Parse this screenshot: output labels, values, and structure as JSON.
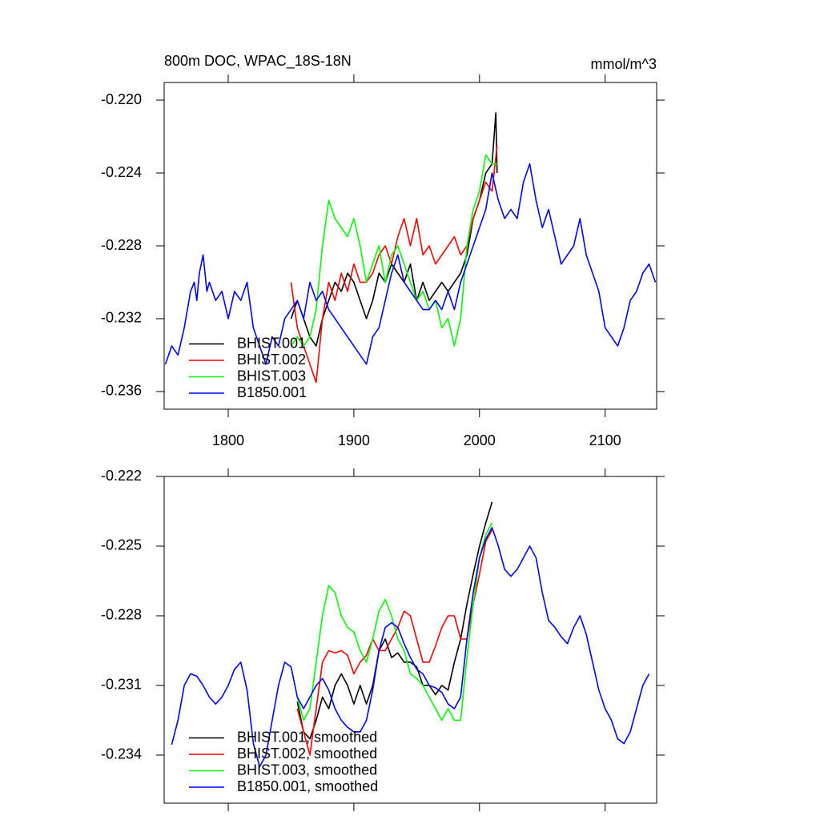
{
  "chart_data": [
    {
      "type": "line",
      "title": "800m DOC, WPAC_18S-18N",
      "units": "mmol/m^3",
      "xlim": [
        1749,
        2141
      ],
      "ylim": [
        -0.23697,
        -0.21903
      ],
      "xticks": [
        1800,
        1900,
        2000,
        2100
      ],
      "yticks": [
        {
          "value": -0.22,
          "label": "-0.220"
        },
        -0.224,
        -0.228,
        -0.232,
        -0.236
      ],
      "legend": "lower left",
      "show_xtick_labels": true,
      "series": [
        {
          "name": "BHIST.001",
          "color": "#000000",
          "x": [
            1850,
            1855,
            1860,
            1865,
            1870,
            1875,
            1880,
            1885,
            1890,
            1895,
            1900,
            1905,
            1910,
            1915,
            1920,
            1925,
            1930,
            1935,
            1940,
            1945,
            1950,
            1955,
            1960,
            1965,
            1970,
            1975,
            1980,
            1985,
            1990,
            1995,
            2000,
            2005,
            2010,
            2013,
            2014
          ],
          "values": [
            -0.232,
            -0.231,
            -0.232,
            -0.233,
            -0.2335,
            -0.232,
            -0.231,
            -0.23,
            -0.2305,
            -0.2295,
            -0.23,
            -0.231,
            -0.232,
            -0.231,
            -0.2295,
            -0.23,
            -0.229,
            -0.2295,
            -0.23,
            -0.229,
            -0.231,
            -0.23,
            -0.231,
            -0.2305,
            -0.23,
            -0.2305,
            -0.23,
            -0.2295,
            -0.2285,
            -0.2265,
            -0.2255,
            -0.224,
            -0.2235,
            -0.2207,
            -0.224
          ]
        },
        {
          "name": "BHIST.002",
          "color": "#ff0000",
          "x": [
            1850,
            1855,
            1860,
            1865,
            1870,
            1875,
            1880,
            1885,
            1890,
            1895,
            1900,
            1905,
            1910,
            1915,
            1920,
            1925,
            1930,
            1935,
            1940,
            1945,
            1950,
            1955,
            1960,
            1965,
            1970,
            1975,
            1980,
            1985,
            1990,
            1995,
            2000,
            2005,
            2010,
            2014
          ],
          "values": [
            -0.23,
            -0.2325,
            -0.2335,
            -0.2345,
            -0.2355,
            -0.232,
            -0.23,
            -0.231,
            -0.2295,
            -0.2305,
            -0.229,
            -0.23,
            -0.23,
            -0.2295,
            -0.2285,
            -0.228,
            -0.229,
            -0.2275,
            -0.2265,
            -0.228,
            -0.2265,
            -0.2285,
            -0.228,
            -0.229,
            -0.2285,
            -0.228,
            -0.2275,
            -0.2285,
            -0.228,
            -0.2265,
            -0.2255,
            -0.2245,
            -0.225,
            -0.2225
          ]
        },
        {
          "name": "BHIST.003",
          "color": "#00ff00",
          "x": [
            1850,
            1855,
            1860,
            1865,
            1870,
            1875,
            1880,
            1885,
            1890,
            1895,
            1900,
            1905,
            1910,
            1915,
            1920,
            1925,
            1930,
            1935,
            1940,
            1945,
            1950,
            1955,
            1960,
            1965,
            1970,
            1975,
            1980,
            1985,
            1990,
            1995,
            2000,
            2005,
            2010,
            2014
          ],
          "values": [
            -0.2335,
            -0.233,
            -0.2335,
            -0.233,
            -0.2315,
            -0.228,
            -0.2255,
            -0.2265,
            -0.227,
            -0.2275,
            -0.2265,
            -0.228,
            -0.23,
            -0.229,
            -0.228,
            -0.23,
            -0.2285,
            -0.228,
            -0.229,
            -0.23,
            -0.231,
            -0.2305,
            -0.2315,
            -0.231,
            -0.2325,
            -0.232,
            -0.2335,
            -0.232,
            -0.228,
            -0.226,
            -0.225,
            -0.223,
            -0.2235,
            -0.2235
          ]
        },
        {
          "name": "B1850.001",
          "color": "#0000ff",
          "x": [
            1750,
            1755,
            1760,
            1765,
            1770,
            1773,
            1775,
            1777,
            1780,
            1783,
            1785,
            1790,
            1795,
            1800,
            1805,
            1810,
            1815,
            1820,
            1825,
            1830,
            1835,
            1840,
            1845,
            1850,
            1855,
            1860,
            1865,
            1870,
            1875,
            1880,
            1885,
            1890,
            1895,
            1900,
            1905,
            1910,
            1915,
            1920,
            1925,
            1930,
            1935,
            1940,
            1945,
            1950,
            1955,
            1960,
            1965,
            1970,
            1975,
            1980,
            1985,
            1990,
            1995,
            2000,
            2005,
            2010,
            2015,
            2020,
            2025,
            2030,
            2035,
            2040,
            2045,
            2050,
            2055,
            2060,
            2065,
            2070,
            2075,
            2080,
            2085,
            2090,
            2095,
            2100,
            2105,
            2110,
            2115,
            2120,
            2125,
            2130,
            2135,
            2140
          ],
          "values": [
            -0.2345,
            -0.2335,
            -0.234,
            -0.2325,
            -0.2305,
            -0.23,
            -0.231,
            -0.2295,
            -0.2285,
            -0.2305,
            -0.23,
            -0.231,
            -0.2305,
            -0.232,
            -0.2305,
            -0.231,
            -0.23,
            -0.2325,
            -0.2335,
            -0.2345,
            -0.233,
            -0.2335,
            -0.232,
            -0.2315,
            -0.231,
            -0.232,
            -0.23,
            -0.231,
            -0.2305,
            -0.2315,
            -0.232,
            -0.2325,
            -0.233,
            -0.2335,
            -0.234,
            -0.2345,
            -0.233,
            -0.2325,
            -0.231,
            -0.2295,
            -0.2285,
            -0.23,
            -0.2305,
            -0.231,
            -0.2315,
            -0.2315,
            -0.231,
            -0.2315,
            -0.2305,
            -0.2315,
            -0.23,
            -0.229,
            -0.228,
            -0.227,
            -0.226,
            -0.224,
            -0.2255,
            -0.2265,
            -0.226,
            -0.2265,
            -0.2245,
            -0.2235,
            -0.2255,
            -0.227,
            -0.226,
            -0.2275,
            -0.229,
            -0.2285,
            -0.228,
            -0.2265,
            -0.2285,
            -0.2295,
            -0.2305,
            -0.2325,
            -0.233,
            -0.2335,
            -0.2325,
            -0.231,
            -0.2305,
            -0.2295,
            -0.229,
            -0.23
          ]
        }
      ]
    },
    {
      "type": "line",
      "xlim": [
        1749,
        2141
      ],
      "ylim": [
        -0.23607,
        -0.222
      ],
      "xticks": [
        1800,
        1900,
        2000,
        2100
      ],
      "yticks": [
        -0.222,
        -0.225,
        -0.228,
        -0.231,
        -0.234
      ],
      "legend": "lower left",
      "show_xtick_labels": false,
      "series": [
        {
          "name": "BHIST.001, smoothed",
          "color": "#000000",
          "x": [
            1855,
            1860,
            1865,
            1870,
            1875,
            1880,
            1885,
            1890,
            1895,
            1900,
            1905,
            1910,
            1915,
            1920,
            1925,
            1930,
            1935,
            1940,
            1945,
            1950,
            1955,
            1960,
            1965,
            1970,
            1975,
            1980,
            1985,
            1990,
            1995,
            2000,
            2005,
            2010
          ],
          "values": [
            -0.2317,
            -0.233,
            -0.2333,
            -0.2325,
            -0.2315,
            -0.232,
            -0.231,
            -0.2305,
            -0.231,
            -0.2318,
            -0.231,
            -0.2318,
            -0.231,
            -0.2295,
            -0.229,
            -0.2298,
            -0.2296,
            -0.23,
            -0.23,
            -0.2302,
            -0.231,
            -0.231,
            -0.2314,
            -0.231,
            -0.2312,
            -0.23,
            -0.229,
            -0.2275,
            -0.2262,
            -0.225,
            -0.224,
            -0.2231
          ]
        },
        {
          "name": "BHIST.002, smoothed",
          "color": "#ff0000",
          "x": [
            1855,
            1860,
            1865,
            1870,
            1875,
            1880,
            1885,
            1890,
            1895,
            1900,
            1905,
            1910,
            1915,
            1920,
            1925,
            1930,
            1935,
            1940,
            1945,
            1950,
            1955,
            1960,
            1965,
            1970,
            1975,
            1980,
            1985,
            1990,
            1995,
            2000,
            2005,
            2010
          ],
          "values": [
            -0.232,
            -0.233,
            -0.234,
            -0.232,
            -0.23,
            -0.2295,
            -0.2296,
            -0.2295,
            -0.2297,
            -0.2305,
            -0.23,
            -0.2297,
            -0.229,
            -0.2295,
            -0.2295,
            -0.229,
            -0.2285,
            -0.2278,
            -0.228,
            -0.229,
            -0.23,
            -0.23,
            -0.2293,
            -0.2285,
            -0.228,
            -0.228,
            -0.229,
            -0.229,
            -0.2275,
            -0.2262,
            -0.2248,
            -0.2243
          ]
        },
        {
          "name": "BHIST.003, smoothed",
          "color": "#00ff00",
          "x": [
            1855,
            1860,
            1865,
            1870,
            1875,
            1880,
            1885,
            1890,
            1895,
            1900,
            1905,
            1910,
            1915,
            1920,
            1925,
            1930,
            1935,
            1940,
            1945,
            1950,
            1955,
            1960,
            1965,
            1970,
            1975,
            1980,
            1985,
            1990,
            1995,
            2000,
            2005,
            2010
          ],
          "values": [
            -0.2315,
            -0.2325,
            -0.232,
            -0.23,
            -0.228,
            -0.2267,
            -0.227,
            -0.228,
            -0.2285,
            -0.2287,
            -0.2295,
            -0.23,
            -0.229,
            -0.2278,
            -0.2273,
            -0.228,
            -0.229,
            -0.2295,
            -0.2305,
            -0.2307,
            -0.231,
            -0.2315,
            -0.232,
            -0.2325,
            -0.232,
            -0.2325,
            -0.2325,
            -0.2298,
            -0.2275,
            -0.2255,
            -0.2245,
            -0.224
          ]
        },
        {
          "name": "B1850.001, smoothed",
          "color": "#0000ff",
          "x": [
            1755,
            1760,
            1765,
            1770,
            1775,
            1780,
            1785,
            1790,
            1795,
            1800,
            1805,
            1810,
            1815,
            1820,
            1825,
            1830,
            1835,
            1840,
            1845,
            1850,
            1855,
            1860,
            1865,
            1870,
            1875,
            1880,
            1885,
            1890,
            1895,
            1900,
            1905,
            1910,
            1915,
            1920,
            1925,
            1930,
            1935,
            1940,
            1945,
            1950,
            1955,
            1960,
            1965,
            1970,
            1975,
            1980,
            1985,
            1990,
            1995,
            2000,
            2005,
            2010,
            2015,
            2020,
            2025,
            2030,
            2035,
            2040,
            2045,
            2050,
            2055,
            2060,
            2065,
            2070,
            2075,
            2080,
            2085,
            2090,
            2095,
            2100,
            2105,
            2110,
            2115,
            2120,
            2125,
            2130,
            2135
          ],
          "values": [
            -0.23355,
            -0.2325,
            -0.231,
            -0.2305,
            -0.2306,
            -0.231,
            -0.2315,
            -0.2318,
            -0.2315,
            -0.231,
            -0.2303,
            -0.23,
            -0.2312,
            -0.2335,
            -0.2345,
            -0.234,
            -0.2325,
            -0.231,
            -0.23,
            -0.2302,
            -0.2315,
            -0.232,
            -0.2315,
            -0.231,
            -0.2307,
            -0.2312,
            -0.232,
            -0.2325,
            -0.2328,
            -0.233,
            -0.233,
            -0.2325,
            -0.2312,
            -0.2295,
            -0.2285,
            -0.2283,
            -0.2285,
            -0.2292,
            -0.2298,
            -0.2303,
            -0.2305,
            -0.231,
            -0.2311,
            -0.2313,
            -0.2318,
            -0.232,
            -0.2315,
            -0.229,
            -0.227,
            -0.2255,
            -0.2247,
            -0.2242,
            -0.225,
            -0.226,
            -0.2263,
            -0.226,
            -0.2255,
            -0.225,
            -0.2255,
            -0.227,
            -0.2282,
            -0.2285,
            -0.2289,
            -0.2292,
            -0.2285,
            -0.228,
            -0.2288,
            -0.23,
            -0.2312,
            -0.232,
            -0.2325,
            -0.2333,
            -0.2335,
            -0.233,
            -0.232,
            -0.231,
            -0.2305
          ]
        }
      ]
    }
  ]
}
